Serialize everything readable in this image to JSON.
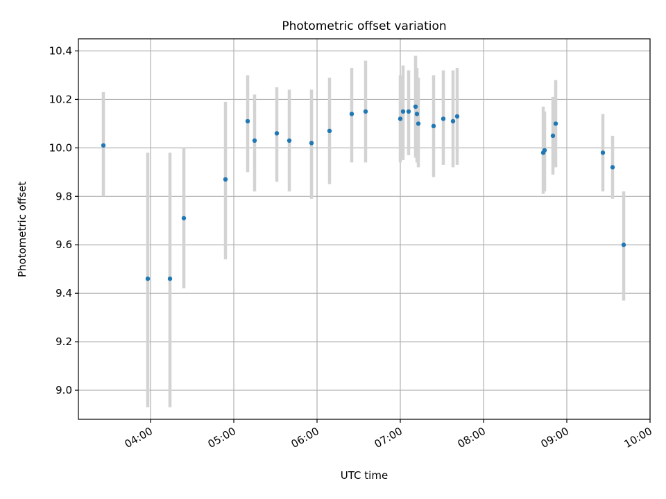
{
  "chart_data": {
    "type": "scatter",
    "title": "Photometric offset variation",
    "xlabel": "UTC time",
    "ylabel": "Photometric offset",
    "xlim": [
      "03:08",
      "10:00"
    ],
    "ylim": [
      8.88,
      10.45
    ],
    "xticks": [
      "04:00",
      "05:00",
      "06:00",
      "07:00",
      "08:00",
      "09:00",
      "10:00"
    ],
    "yticks": [
      "9.0",
      "9.2",
      "9.4",
      "9.6",
      "9.8",
      "10.0",
      "10.2",
      "10.4"
    ],
    "grid": true,
    "colors": {
      "points": "#1f77b4",
      "error_bars": "#d3d3d3",
      "grid": "#b0b0b0"
    },
    "series": [
      {
        "points": [
          {
            "x": "03:26",
            "y": 10.01,
            "ylo": 9.8,
            "yhi": 10.23
          },
          {
            "x": "03:58",
            "y": 9.46,
            "ylo": 8.93,
            "yhi": 9.98
          },
          {
            "x": "04:14",
            "y": 9.46,
            "ylo": 8.93,
            "yhi": 9.98
          },
          {
            "x": "04:24",
            "y": 9.71,
            "ylo": 9.42,
            "yhi": 10.0
          },
          {
            "x": "04:54",
            "y": 9.87,
            "ylo": 9.54,
            "yhi": 10.19
          },
          {
            "x": "05:10",
            "y": 10.11,
            "ylo": 9.9,
            "yhi": 10.3
          },
          {
            "x": "05:15",
            "y": 10.03,
            "ylo": 9.82,
            "yhi": 10.22
          },
          {
            "x": "05:31",
            "y": 10.06,
            "ylo": 9.86,
            "yhi": 10.25
          },
          {
            "x": "05:40",
            "y": 10.03,
            "ylo": 9.82,
            "yhi": 10.24
          },
          {
            "x": "05:56",
            "y": 10.02,
            "ylo": 9.79,
            "yhi": 10.24
          },
          {
            "x": "06:09",
            "y": 10.07,
            "ylo": 9.85,
            "yhi": 10.29
          },
          {
            "x": "06:25",
            "y": 10.14,
            "ylo": 9.94,
            "yhi": 10.33
          },
          {
            "x": "06:35",
            "y": 10.15,
            "ylo": 9.94,
            "yhi": 10.36
          },
          {
            "x": "07:00",
            "y": 10.12,
            "ylo": 9.94,
            "yhi": 10.3
          },
          {
            "x": "07:02",
            "y": 10.15,
            "ylo": 9.95,
            "yhi": 10.34
          },
          {
            "x": "07:06",
            "y": 10.15,
            "ylo": 9.97,
            "yhi": 10.32
          },
          {
            "x": "07:11",
            "y": 10.17,
            "ylo": 9.96,
            "yhi": 10.38
          },
          {
            "x": "07:12",
            "y": 10.14,
            "ylo": 9.94,
            "yhi": 10.33
          },
          {
            "x": "07:13",
            "y": 10.1,
            "ylo": 9.92,
            "yhi": 10.29
          },
          {
            "x": "07:24",
            "y": 10.09,
            "ylo": 9.88,
            "yhi": 10.3
          },
          {
            "x": "07:31",
            "y": 10.12,
            "ylo": 9.93,
            "yhi": 10.32
          },
          {
            "x": "07:38",
            "y": 10.11,
            "ylo": 9.92,
            "yhi": 10.32
          },
          {
            "x": "07:41",
            "y": 10.13,
            "ylo": 9.93,
            "yhi": 10.33
          },
          {
            "x": "08:43",
            "y": 9.98,
            "ylo": 9.81,
            "yhi": 10.17
          },
          {
            "x": "08:44",
            "y": 9.99,
            "ylo": 9.82,
            "yhi": 10.15
          },
          {
            "x": "08:50",
            "y": 10.05,
            "ylo": 9.89,
            "yhi": 10.21
          },
          {
            "x": "08:52",
            "y": 10.1,
            "ylo": 9.92,
            "yhi": 10.28
          },
          {
            "x": "09:26",
            "y": 9.98,
            "ylo": 9.82,
            "yhi": 10.14
          },
          {
            "x": "09:33",
            "y": 9.92,
            "ylo": 9.79,
            "yhi": 10.05
          },
          {
            "x": "09:41",
            "y": 9.6,
            "ylo": 9.37,
            "yhi": 9.82
          }
        ]
      }
    ]
  }
}
